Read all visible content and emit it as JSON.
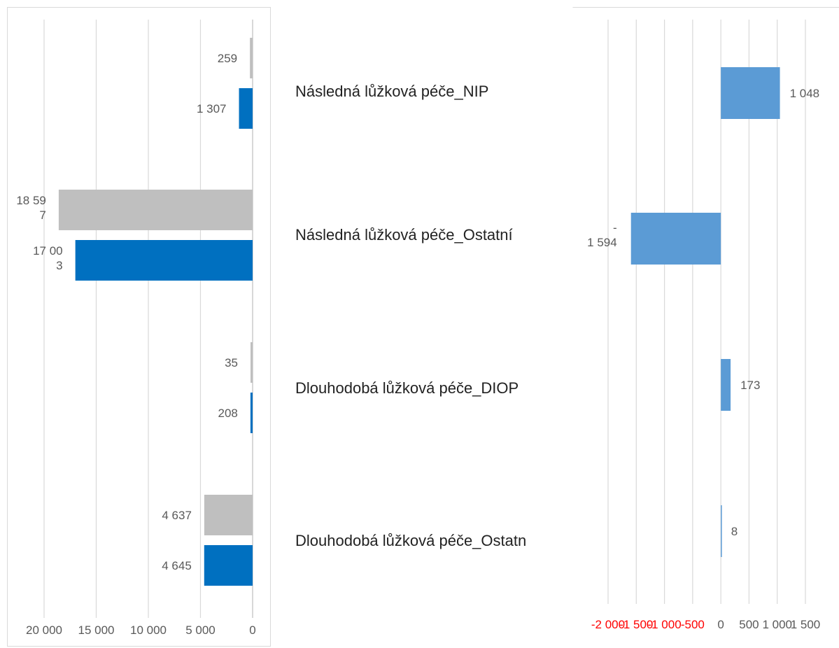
{
  "chart_data": [
    {
      "type": "bar",
      "orientation": "horizontal",
      "axis_reversed": true,
      "categories": [
        "Následná lůžková péče_NIP",
        "Následná lůžková péče_Ostatní",
        "Dlouhodobá lůžková péče_DIOP",
        "Dlouhodobá lůžková péče_Ostatn"
      ],
      "series": [
        {
          "color": "#bfbfbf",
          "values": [
            259,
            18597,
            35,
            4637
          ],
          "labels": [
            [
              "259"
            ],
            [
              "18 59",
              "7"
            ],
            [
              "35"
            ],
            [
              "4 637"
            ]
          ]
        },
        {
          "color": "#0070c0",
          "values": [
            1307,
            17003,
            208,
            4645
          ],
          "labels": [
            [
              "1 307"
            ],
            [
              "17 00",
              "3"
            ],
            [
              "208"
            ],
            [
              "4 645"
            ]
          ]
        }
      ],
      "xlim": [
        0,
        20000
      ],
      "ticks": [
        20000,
        15000,
        10000,
        5000,
        0
      ],
      "tick_labels": [
        "20 000",
        "15 000",
        "10 000",
        "5 000",
        "0"
      ],
      "grid": true
    },
    {
      "type": "bar",
      "orientation": "horizontal",
      "categories": [
        "Následná lůžková péče_NIP",
        "Následná lůžková péče_Ostatní",
        "Dlouhodobá lůžková péče_DIOP",
        "Dlouhodobá lůžková péče_Ostatn"
      ],
      "series": [
        {
          "color": "#5b9bd5",
          "values": [
            1048,
            -1594,
            173,
            8
          ],
          "labels": [
            [
              "1 048"
            ],
            [
              "-",
              "1 594"
            ],
            [
              "173"
            ],
            [
              "8"
            ]
          ]
        }
      ],
      "xlim": [
        -2000,
        1500
      ],
      "ticks": [
        -2000,
        -1500,
        -1000,
        -500,
        0,
        500,
        1000,
        1500
      ],
      "tick_labels": [
        "-2 000",
        "-1 500",
        "-1 000",
        "-500",
        "0",
        "500",
        "1 000",
        "1 500"
      ],
      "negative_label_color": "#ff0000",
      "grid": true
    }
  ]
}
